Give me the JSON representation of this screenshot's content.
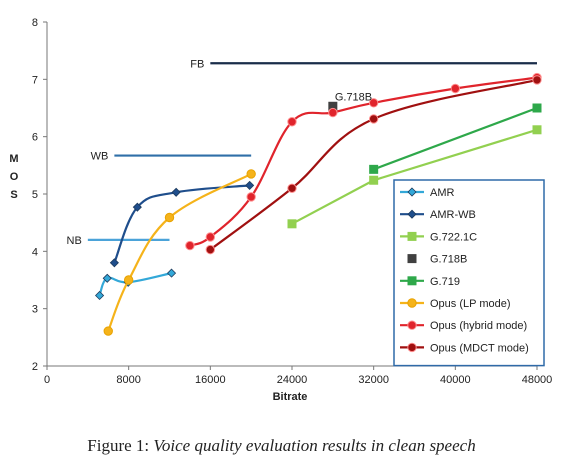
{
  "chart_data": {
    "type": "line",
    "title": "",
    "xlabel": "Bitrate",
    "ylabel": "MOS",
    "xlim": [
      0,
      48000
    ],
    "ylim": [
      2,
      8
    ],
    "xticks": [
      0,
      8000,
      16000,
      24000,
      32000,
      40000,
      48000
    ],
    "xtick_labels": [
      "0",
      "8000",
      "16000",
      "24000",
      "32000",
      "40000",
      "48000"
    ],
    "yticks": [
      2,
      3,
      4,
      5,
      6,
      7,
      8
    ],
    "ytick_labels": [
      "2",
      "3",
      "4",
      "5",
      "6",
      "7",
      "8"
    ],
    "grid": false,
    "legend_position": "right",
    "reference_lines": [
      {
        "label": "NB",
        "x": [
          4000,
          12000
        ],
        "y": 4.2,
        "color": "#4ba3d9"
      },
      {
        "label": "WB",
        "x": [
          6600,
          20000
        ],
        "y": 5.67,
        "color": "#2f6fa8"
      },
      {
        "label": "FB",
        "x": [
          16000,
          48000
        ],
        "y": 7.28,
        "color": "#1a2d4a"
      }
    ],
    "series": [
      {
        "name": "AMR",
        "color": "#33a8d8",
        "marker": "diamond",
        "smooth": true,
        "x": [
          5150,
          5900,
          7950,
          12200
        ],
        "y": [
          3.23,
          3.53,
          3.46,
          3.62
        ]
      },
      {
        "name": "AMR-WB",
        "color": "#1f4e8c",
        "marker": "diamond",
        "smooth": true,
        "x": [
          6600,
          8850,
          12650,
          19850
        ],
        "y": [
          3.8,
          4.77,
          5.03,
          5.15
        ]
      },
      {
        "name": "G.722.1C",
        "color": "#92d050",
        "marker": "square",
        "smooth": false,
        "x": [
          24000,
          32000,
          48000
        ],
        "y": [
          4.48,
          5.24,
          6.12
        ]
      },
      {
        "name": "G.718B",
        "color": "#404040",
        "marker": "square",
        "smooth": false,
        "x": [
          28000
        ],
        "y": [
          6.53
        ]
      },
      {
        "name": "G.719",
        "color": "#2ea84a",
        "marker": "square",
        "smooth": false,
        "x": [
          32000,
          48000
        ],
        "y": [
          5.43,
          6.5
        ]
      },
      {
        "name": "Opus (LP mode)",
        "color": "#f5b31a",
        "marker": "circle",
        "smooth": true,
        "x": [
          6000,
          8000,
          12000,
          20000
        ],
        "y": [
          2.61,
          3.5,
          4.59,
          5.35
        ]
      },
      {
        "name": "Opus (hybrid mode)",
        "color": "#e0242c",
        "marker": "circle",
        "smooth": true,
        "x": [
          14000,
          16000,
          20000,
          24000,
          28000,
          32000,
          40000,
          48000
        ],
        "y": [
          4.1,
          4.25,
          4.95,
          6.26,
          6.42,
          6.59,
          6.84,
          7.03
        ]
      },
      {
        "name": "Opus (MDCT mode)",
        "color": "#a01010",
        "marker": "circle",
        "smooth": true,
        "x": [
          16000,
          24000,
          32000,
          48000
        ],
        "y": [
          4.03,
          5.1,
          6.31,
          6.99
        ]
      }
    ],
    "annotations": [
      {
        "text": "G.718B",
        "x": 28000,
        "y": 6.53
      }
    ]
  },
  "caption": {
    "prefix": "Figure 1: ",
    "text": "Voice quality evaluation results in clean speech"
  }
}
